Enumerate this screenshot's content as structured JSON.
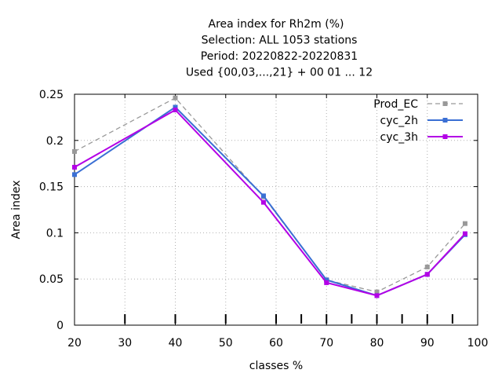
{
  "chart_data": {
    "type": "line",
    "title_lines": [
      "Area index  for Rh2m (%)",
      "Selection: ALL   1053 stations",
      "Period: 20220822-20220831",
      "Used {00,03,...,21} + 00 01 ... 12"
    ],
    "xlabel": "classes %",
    "ylabel": "Area index",
    "xlim": [
      20,
      100
    ],
    "ylim": [
      0,
      0.25
    ],
    "x_ticks": [
      20,
      30,
      40,
      50,
      60,
      70,
      80,
      90,
      100
    ],
    "x_tick_labels": [
      "20",
      "30",
      "40",
      "50",
      "60",
      "70",
      "80",
      "90",
      "100"
    ],
    "y_ticks": [
      0,
      0.05,
      0.1,
      0.15,
      0.2,
      0.25
    ],
    "y_tick_labels": [
      "0",
      "0.05",
      "0.1",
      "0.15",
      "0.2",
      "0.25"
    ],
    "class_markers": [
      30,
      40,
      50,
      60,
      65,
      70,
      75,
      80,
      85,
      90,
      95
    ],
    "grid": true,
    "legend_position": "top-right",
    "series": [
      {
        "name": "Prod_EC",
        "color": "#999999",
        "dashed": true,
        "x": [
          20,
          40,
          57.5,
          70,
          80,
          90,
          97.5
        ],
        "values": [
          0.188,
          0.246,
          0.139,
          0.049,
          0.036,
          0.063,
          0.11
        ]
      },
      {
        "name": "cyc_2h",
        "color": "#3a6fd4",
        "dashed": false,
        "x": [
          20,
          40,
          57.5,
          70,
          80,
          90,
          97.5
        ],
        "values": [
          0.163,
          0.236,
          0.14,
          0.049,
          0.032,
          0.055,
          0.098
        ]
      },
      {
        "name": "cyc_3h",
        "color": "#b300e6",
        "dashed": false,
        "x": [
          20,
          40,
          57.5,
          70,
          80,
          90,
          97.5
        ],
        "values": [
          0.171,
          0.233,
          0.133,
          0.046,
          0.032,
          0.055,
          0.099
        ]
      }
    ]
  }
}
